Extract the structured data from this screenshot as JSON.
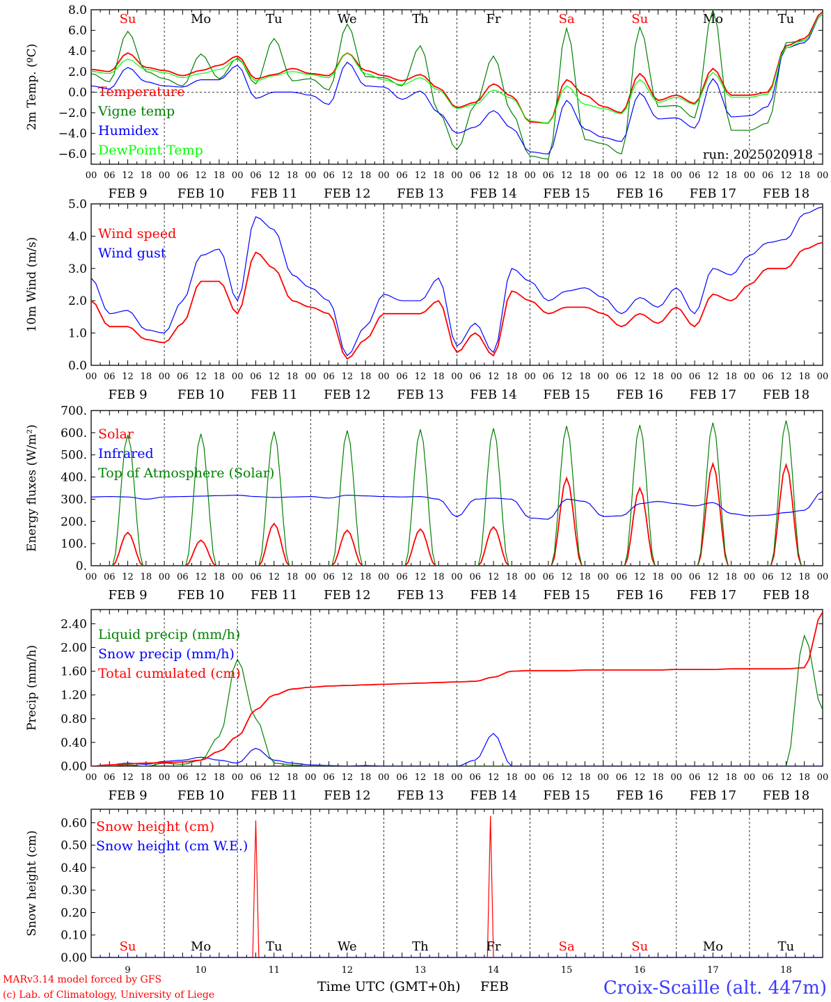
{
  "footer": {
    "credit_line1": "MARv3.14 model forced by GFS",
    "credit_line2": "(c) Lab. of Climatology, University of Liege",
    "xlabel": "Time UTC (GMT+0h)",
    "month": "FEB",
    "station": "Croix-Scaille (alt. 447m)"
  },
  "days": {
    "weekdays": [
      "Su",
      "Mo",
      "Tu",
      "We",
      "Th",
      "Fr",
      "Sa",
      "Su",
      "Mo",
      "Tu"
    ],
    "weekday_colors": [
      "#ff0000",
      "#000000",
      "#000000",
      "#000000",
      "#000000",
      "#000000",
      "#ff0000",
      "#ff0000",
      "#000000",
      "#000000"
    ],
    "date_labels": [
      "FEB  9",
      "FEB 10",
      "FEB 11",
      "FEB 12",
      "FEB 13",
      "FEB 14",
      "FEB 15",
      "FEB 16",
      "FEB 17",
      "FEB 18"
    ],
    "day_numbers": [
      "9",
      "10",
      "11",
      "12",
      "13",
      "14",
      "15",
      "16",
      "17",
      "18"
    ],
    "hour_ticks": [
      "00",
      "06",
      "12",
      "18"
    ],
    "final_tick": "00"
  },
  "chart_data": [
    {
      "type": "line",
      "ylabel": "2m Temp. (ºC)",
      "ylim": [
        -7,
        8
      ],
      "yticks": [
        -6,
        -4,
        -2,
        0,
        2,
        4,
        6,
        8
      ],
      "ytick_labels": [
        "−6.0",
        "−4.0",
        "−2.0",
        "0.0",
        "2.0",
        "4.0",
        "6.0",
        "8.0"
      ],
      "annotation": "run: 2025020918",
      "x_hours": [
        0,
        6,
        12,
        18,
        24,
        30,
        36,
        42,
        48,
        54,
        60,
        66,
        72,
        78,
        84,
        90,
        96,
        102,
        108,
        114,
        120,
        126,
        132,
        138,
        144,
        150,
        156,
        162,
        168,
        174,
        180,
        186,
        192,
        198,
        204,
        210,
        216,
        222,
        228,
        234,
        240
      ],
      "series": [
        {
          "name": "Temperature",
          "color": "#ff0000",
          "values": [
            2.2,
            2.0,
            3.8,
            2.4,
            2.1,
            1.6,
            2.1,
            2.6,
            3.5,
            1.3,
            1.7,
            2.3,
            1.8,
            1.6,
            3.8,
            2.1,
            1.6,
            1.1,
            1.7,
            0.4,
            -1.5,
            -1.0,
            0.8,
            -0.4,
            -2.9,
            -3.0,
            1.2,
            -0.3,
            -1.4,
            -2.0,
            1.8,
            -0.8,
            -0.3,
            -1.1,
            2.3,
            -0.3,
            -0.3,
            0.0,
            4.5,
            5.2,
            7.8
          ]
        },
        {
          "name": "Vigne temp",
          "color": "#008000",
          "values": [
            1.8,
            1.0,
            5.9,
            2.0,
            1.3,
            0.6,
            3.7,
            1.3,
            3.3,
            0.8,
            5.2,
            1.1,
            1.3,
            0.2,
            6.6,
            1.5,
            1.4,
            0.6,
            4.5,
            -2.0,
            -5.6,
            -1.2,
            3.5,
            -2.0,
            -6.2,
            -6.5,
            6.2,
            -4.6,
            -5.0,
            -6.0,
            6.3,
            -1.4,
            -1.3,
            -2.5,
            8.0,
            -3.7,
            -3.7,
            -3.0,
            4.8,
            5.0,
            7.6
          ]
        },
        {
          "name": "Humidex",
          "color": "#0000ff",
          "values": [
            0.6,
            0.3,
            2.4,
            1.0,
            0.6,
            0.5,
            1.2,
            1.2,
            2.6,
            -0.6,
            0.0,
            0.0,
            -0.3,
            -1.2,
            2.9,
            0.6,
            0.5,
            -0.7,
            0.1,
            -2.0,
            -4.0,
            -3.4,
            -1.8,
            -3.5,
            -5.8,
            -6.0,
            -0.8,
            -3.6,
            -4.4,
            -4.8,
            -0.1,
            -2.6,
            -2.5,
            -3.5,
            1.3,
            -2.4,
            -2.3,
            -1.4,
            4.3,
            4.8,
            7.6
          ]
        },
        {
          "name": "DewPoint Temp",
          "color": "#00ff00",
          "values": [
            2.0,
            1.8,
            3.2,
            2.2,
            1.9,
            1.4,
            1.8,
            2.2,
            3.2,
            1.1,
            1.6,
            2.0,
            1.7,
            1.4,
            3.8,
            1.8,
            1.2,
            0.7,
            1.4,
            0.2,
            -1.6,
            -1.2,
            0.2,
            -0.6,
            -2.8,
            -3.0,
            0.6,
            -1.2,
            -1.6,
            -2.1,
            1.2,
            -1.0,
            -0.5,
            -1.2,
            1.9,
            -0.5,
            -0.5,
            -0.2,
            4.3,
            5.0,
            7.6
          ]
        }
      ]
    },
    {
      "type": "line",
      "ylabel": "10m Wind (m/s)",
      "ylim": [
        0,
        5
      ],
      "yticks": [
        0,
        1,
        2,
        3,
        4,
        5
      ],
      "ytick_labels": [
        "0.0",
        "1.0",
        "2.0",
        "3.0",
        "4.0",
        "5.0"
      ],
      "x_hours": [
        0,
        6,
        12,
        18,
        24,
        30,
        36,
        42,
        48,
        54,
        60,
        66,
        72,
        78,
        84,
        90,
        96,
        102,
        108,
        114,
        120,
        126,
        132,
        138,
        144,
        150,
        156,
        162,
        168,
        174,
        180,
        186,
        192,
        198,
        204,
        210,
        216,
        222,
        228,
        234,
        240
      ],
      "series": [
        {
          "name": "Wind speed",
          "color": "#ff0000",
          "values": [
            2.0,
            1.2,
            1.2,
            0.8,
            0.7,
            1.3,
            2.6,
            2.6,
            1.6,
            3.5,
            3.0,
            2.0,
            1.8,
            1.6,
            0.2,
            0.8,
            1.6,
            1.6,
            1.6,
            2.0,
            0.4,
            1.0,
            0.3,
            2.3,
            2.0,
            1.6,
            1.8,
            1.8,
            1.6,
            1.2,
            1.6,
            1.3,
            1.8,
            1.2,
            2.2,
            2.0,
            2.5,
            3.0,
            3.0,
            3.6,
            3.8
          ]
        },
        {
          "name": "Wind gust",
          "color": "#0000ff",
          "values": [
            2.7,
            1.6,
            1.7,
            1.1,
            1.0,
            2.0,
            3.4,
            3.6,
            2.0,
            4.6,
            4.2,
            2.8,
            2.4,
            2.0,
            0.3,
            1.2,
            2.2,
            2.0,
            2.0,
            2.7,
            0.6,
            1.3,
            0.4,
            3.0,
            2.6,
            2.0,
            2.3,
            2.4,
            2.1,
            1.6,
            2.1,
            1.8,
            2.4,
            1.6,
            3.0,
            2.8,
            3.4,
            3.8,
            3.9,
            4.7,
            4.9
          ]
        }
      ]
    },
    {
      "type": "line",
      "ylabel": "Energy fluxes (W/m²)",
      "ylim": [
        0,
        700
      ],
      "yticks": [
        0,
        100,
        200,
        300,
        400,
        500,
        600,
        700
      ],
      "ytick_labels": [
        "0.",
        "100.",
        "200.",
        "300.",
        "400.",
        "500.",
        "600.",
        "700."
      ],
      "x_hours": [
        0,
        6,
        12,
        18,
        24,
        30,
        36,
        42,
        48,
        54,
        60,
        66,
        72,
        78,
        84,
        90,
        96,
        102,
        108,
        114,
        120,
        126,
        132,
        138,
        144,
        150,
        156,
        162,
        168,
        174,
        180,
        186,
        192,
        198,
        204,
        210,
        216,
        222,
        228,
        234,
        240
      ],
      "series": [
        {
          "name": "Solar",
          "color": "#ff0000",
          "day_peaks": [
            150,
            115,
            190,
            160,
            165,
            175,
            395,
            350,
            460,
            455
          ]
        },
        {
          "name": "Infrared",
          "color": "#0000ff",
          "values": [
            310,
            312,
            310,
            300,
            310,
            312,
            314,
            316,
            318,
            312,
            308,
            310,
            312,
            305,
            318,
            315,
            312,
            310,
            312,
            300,
            220,
            300,
            305,
            300,
            215,
            210,
            300,
            290,
            222,
            225,
            280,
            290,
            280,
            270,
            285,
            235,
            225,
            228,
            240,
            250,
            335
          ]
        },
        {
          "name": "Top of Atmosphere (Solar)",
          "color": "#008000",
          "day_peaks": [
            590,
            595,
            605,
            610,
            615,
            620,
            630,
            635,
            645,
            655
          ]
        }
      ]
    },
    {
      "type": "line",
      "ylabel": "Precip (mm/h)",
      "ylim": [
        0,
        2.64
      ],
      "yticks": [
        0,
        0.4,
        0.8,
        1.2,
        1.6,
        2.0,
        2.4
      ],
      "ytick_labels": [
        "0.00",
        "0.40",
        "0.80",
        "1.20",
        "1.60",
        "2.00",
        "2.40"
      ],
      "x_hours": [
        0,
        6,
        12,
        18,
        24,
        30,
        36,
        42,
        48,
        54,
        60,
        66,
        72,
        78,
        84,
        90,
        96,
        102,
        108,
        114,
        120,
        126,
        132,
        138,
        144,
        150,
        156,
        162,
        168,
        174,
        180,
        186,
        192,
        198,
        204,
        210,
        216,
        222,
        228,
        234,
        240
      ],
      "series": [
        {
          "name": "Liquid precip (mm/h)",
          "color": "#008000",
          "values": [
            0.0,
            0.0,
            0.02,
            0.0,
            0.05,
            0.03,
            0.1,
            0.5,
            1.8,
            0.8,
            0.05,
            0.02,
            0.0,
            0.0,
            0.0,
            0.0,
            0.0,
            0.0,
            0.0,
            0.0,
            0.0,
            0.0,
            0.0,
            0.0,
            0.0,
            0.0,
            0.0,
            0.0,
            0.0,
            0.0,
            0.0,
            0.0,
            0.0,
            0.0,
            0.0,
            0.0,
            0.0,
            0.0,
            0.0,
            2.2,
            0.95
          ]
        },
        {
          "name": "Snow precip (mm/h)",
          "color": "#0000ff",
          "values": [
            0.0,
            0.02,
            0.05,
            0.03,
            0.08,
            0.1,
            0.15,
            0.1,
            0.05,
            0.3,
            0.1,
            0.05,
            0.02,
            0.01,
            0.0,
            0.01,
            0.0,
            0.0,
            0.0,
            0.0,
            0.0,
            0.1,
            0.55,
            0.0,
            0.0,
            0.0,
            0.0,
            0.0,
            0.0,
            0.0,
            0.0,
            0.0,
            0.0,
            0.0,
            0.0,
            0.0,
            0.0,
            0.0,
            0.0,
            0.0,
            0.0
          ]
        },
        {
          "name": "Total cumulated (cm)",
          "color": "#ff0000",
          "values": [
            0.0,
            0.02,
            0.04,
            0.05,
            0.06,
            0.07,
            0.1,
            0.25,
            0.5,
            0.95,
            1.2,
            1.3,
            1.33,
            1.35,
            1.36,
            1.37,
            1.38,
            1.39,
            1.4,
            1.41,
            1.42,
            1.43,
            1.5,
            1.6,
            1.61,
            1.61,
            1.61,
            1.62,
            1.62,
            1.62,
            1.62,
            1.62,
            1.63,
            1.63,
            1.63,
            1.64,
            1.64,
            1.64,
            1.64,
            1.66,
            2.6
          ]
        }
      ]
    },
    {
      "type": "line",
      "ylabel": "Snow height (cm)",
      "ylim": [
        0,
        0.66
      ],
      "yticks": [
        0,
        0.1,
        0.2,
        0.3,
        0.4,
        0.5,
        0.6
      ],
      "ytick_labels": [
        "0.00",
        "0.10",
        "0.20",
        "0.30",
        "0.40",
        "0.50",
        "0.60"
      ],
      "x_hours": [
        0,
        52,
        53,
        54,
        55,
        56,
        129,
        130,
        131,
        132,
        133,
        240
      ],
      "series": [
        {
          "name": "Snow height (cm)",
          "color": "#ff0000",
          "values": [
            0,
            0,
            0,
            0.61,
            0,
            0,
            0,
            0,
            0.63,
            0,
            0,
            0
          ]
        },
        {
          "name": "Snow height (cm W.E.)",
          "color": "#0000ff",
          "values": [
            0,
            0,
            0,
            0,
            0,
            0,
            0,
            0,
            0,
            0,
            0,
            0
          ]
        }
      ]
    }
  ]
}
